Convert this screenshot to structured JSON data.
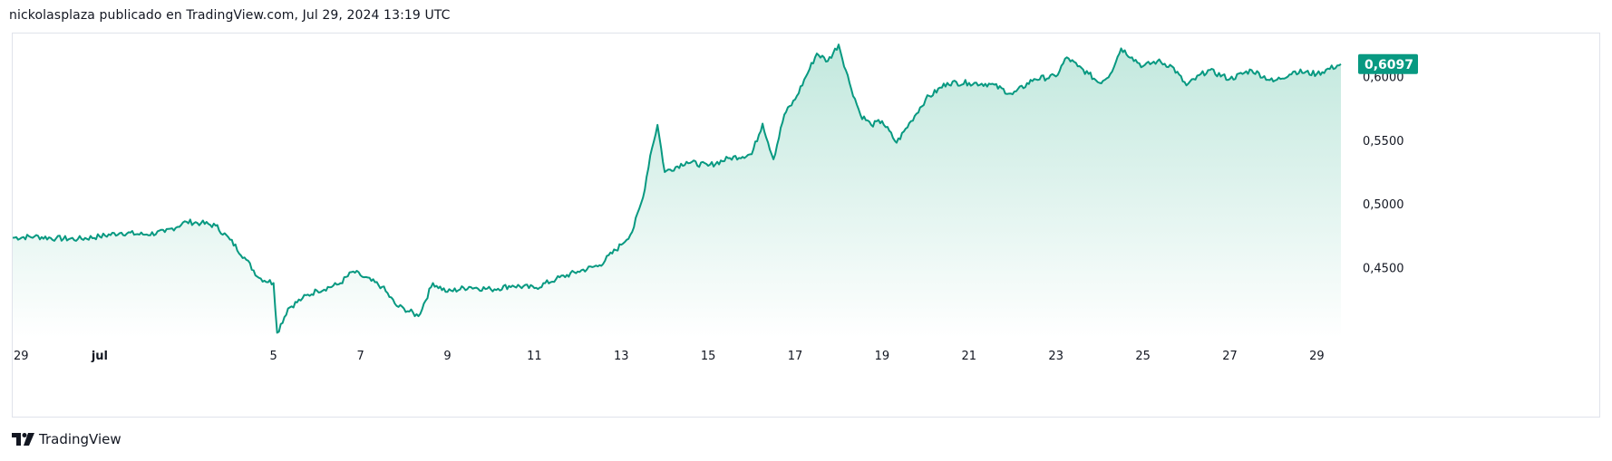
{
  "header": {
    "caption": "nickolasplaza publicado en TradingView.com, Jul 29, 2024 13:19 UTC"
  },
  "footer": {
    "logo_icon": "tradingview-logo-icon",
    "brand": "TradingView"
  },
  "colors": {
    "line": "#089981",
    "area_top": "#bfe7dc",
    "area_bottom": "#ffffff",
    "label_bg": "#089981"
  },
  "chart_data": {
    "type": "area",
    "title": "",
    "xlabel": "",
    "ylabel": "",
    "last_price": "0,6097",
    "x_ticks": [
      "29",
      "jul",
      "5",
      "7",
      "9",
      "11",
      "13",
      "15",
      "17",
      "19",
      "21",
      "23",
      "25",
      "27",
      "29"
    ],
    "y_ticks": [
      "0,6000",
      "0,5500",
      "0,5000",
      "0,4500"
    ],
    "ylim": [
      0.395,
      0.628
    ],
    "xlim": [
      "2024-06-29",
      "2024-07-29T13:19"
    ],
    "series": [
      {
        "x": [
          "2024-06-29",
          "2024-06-29T12:00",
          "2024-06-30",
          "2024-06-30T12:00",
          "2024-07-01",
          "2024-07-01T12:00",
          "2024-07-02",
          "2024-07-02T12:00",
          "2024-07-03",
          "2024-07-03T08:00",
          "2024-07-03T16:00",
          "2024-07-04",
          "2024-07-04T08:00",
          "2024-07-04T16:00",
          "2024-07-05",
          "2024-07-05T02:00",
          "2024-07-05T08:00",
          "2024-07-05T16:00",
          "2024-07-06",
          "2024-07-06T12:00",
          "2024-07-06T20:00",
          "2024-07-07",
          "2024-07-07T12:00",
          "2024-07-07T20:00",
          "2024-07-08",
          "2024-07-08T08:00",
          "2024-07-08T16:00",
          "2024-07-09",
          "2024-07-09T12:00",
          "2024-07-10",
          "2024-07-10T12:00",
          "2024-07-11",
          "2024-07-11T12:00",
          "2024-07-12",
          "2024-07-12T12:00",
          "2024-07-13",
          "2024-07-13T06:00",
          "2024-07-13T12:00",
          "2024-07-13T16:00",
          "2024-07-13T20:00",
          "2024-07-14",
          "2024-07-14T12:00",
          "2024-07-15",
          "2024-07-15T12:00",
          "2024-07-16",
          "2024-07-16T06:00",
          "2024-07-16T12:00",
          "2024-07-16T18:00",
          "2024-07-17",
          "2024-07-17T06:00",
          "2024-07-17T12:00",
          "2024-07-17T18:00",
          "2024-07-18",
          "2024-07-18T06:00",
          "2024-07-18T12:00",
          "2024-07-18T18:00",
          "2024-07-19",
          "2024-07-19T08:00",
          "2024-07-19T16:00",
          "2024-07-20",
          "2024-07-20T12:00",
          "2024-07-21",
          "2024-07-21T12:00",
          "2024-07-22",
          "2024-07-22T12:00",
          "2024-07-23",
          "2024-07-23T06:00",
          "2024-07-23T12:00",
          "2024-07-23T18:00",
          "2024-07-24",
          "2024-07-24T06:00",
          "2024-07-24T12:00",
          "2024-07-24T18:00",
          "2024-07-25",
          "2024-07-25T08:00",
          "2024-07-25T16:00",
          "2024-07-26",
          "2024-07-26T12:00",
          "2024-07-27",
          "2024-07-27T12:00",
          "2024-07-28",
          "2024-07-28T12:00",
          "2024-07-29",
          "2024-07-29T13:19"
        ],
        "values": [
          0.4735,
          0.4745,
          0.473,
          0.4725,
          0.4745,
          0.4775,
          0.476,
          0.478,
          0.486,
          0.485,
          0.483,
          0.472,
          0.458,
          0.442,
          0.438,
          0.399,
          0.418,
          0.426,
          0.432,
          0.437,
          0.447,
          0.444,
          0.435,
          0.42,
          0.418,
          0.412,
          0.438,
          0.431,
          0.435,
          0.433,
          0.436,
          0.434,
          0.441,
          0.447,
          0.452,
          0.468,
          0.478,
          0.505,
          0.538,
          0.562,
          0.525,
          0.533,
          0.53,
          0.536,
          0.539,
          0.563,
          0.535,
          0.57,
          0.582,
          0.6,
          0.618,
          0.612,
          0.625,
          0.595,
          0.57,
          0.562,
          0.565,
          0.548,
          0.565,
          0.582,
          0.595,
          0.595,
          0.594,
          0.586,
          0.598,
          0.6,
          0.615,
          0.608,
          0.602,
          0.595,
          0.602,
          0.622,
          0.615,
          0.608,
          0.612,
          0.608,
          0.593,
          0.605,
          0.598,
          0.605,
          0.596,
          0.604,
          0.602,
          0.6097
        ]
      }
    ],
    "grid": false,
    "legend": "none"
  }
}
